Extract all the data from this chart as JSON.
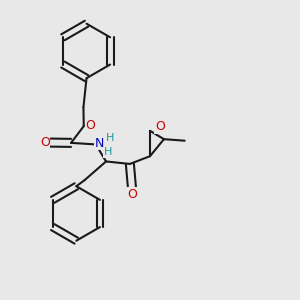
{
  "bg_color": "#e8e8e8",
  "bond_color": "#1a1a1a",
  "bond_lw": 1.5,
  "dbo": 0.013,
  "O_color": "#cc0000",
  "N_color": "#0000bb",
  "H_color": "#1a9a9a",
  "font_size": 9,
  "font_size_s": 8,
  "xlim": [
    0.05,
    0.95
  ],
  "ylim": [
    0.02,
    0.98
  ]
}
